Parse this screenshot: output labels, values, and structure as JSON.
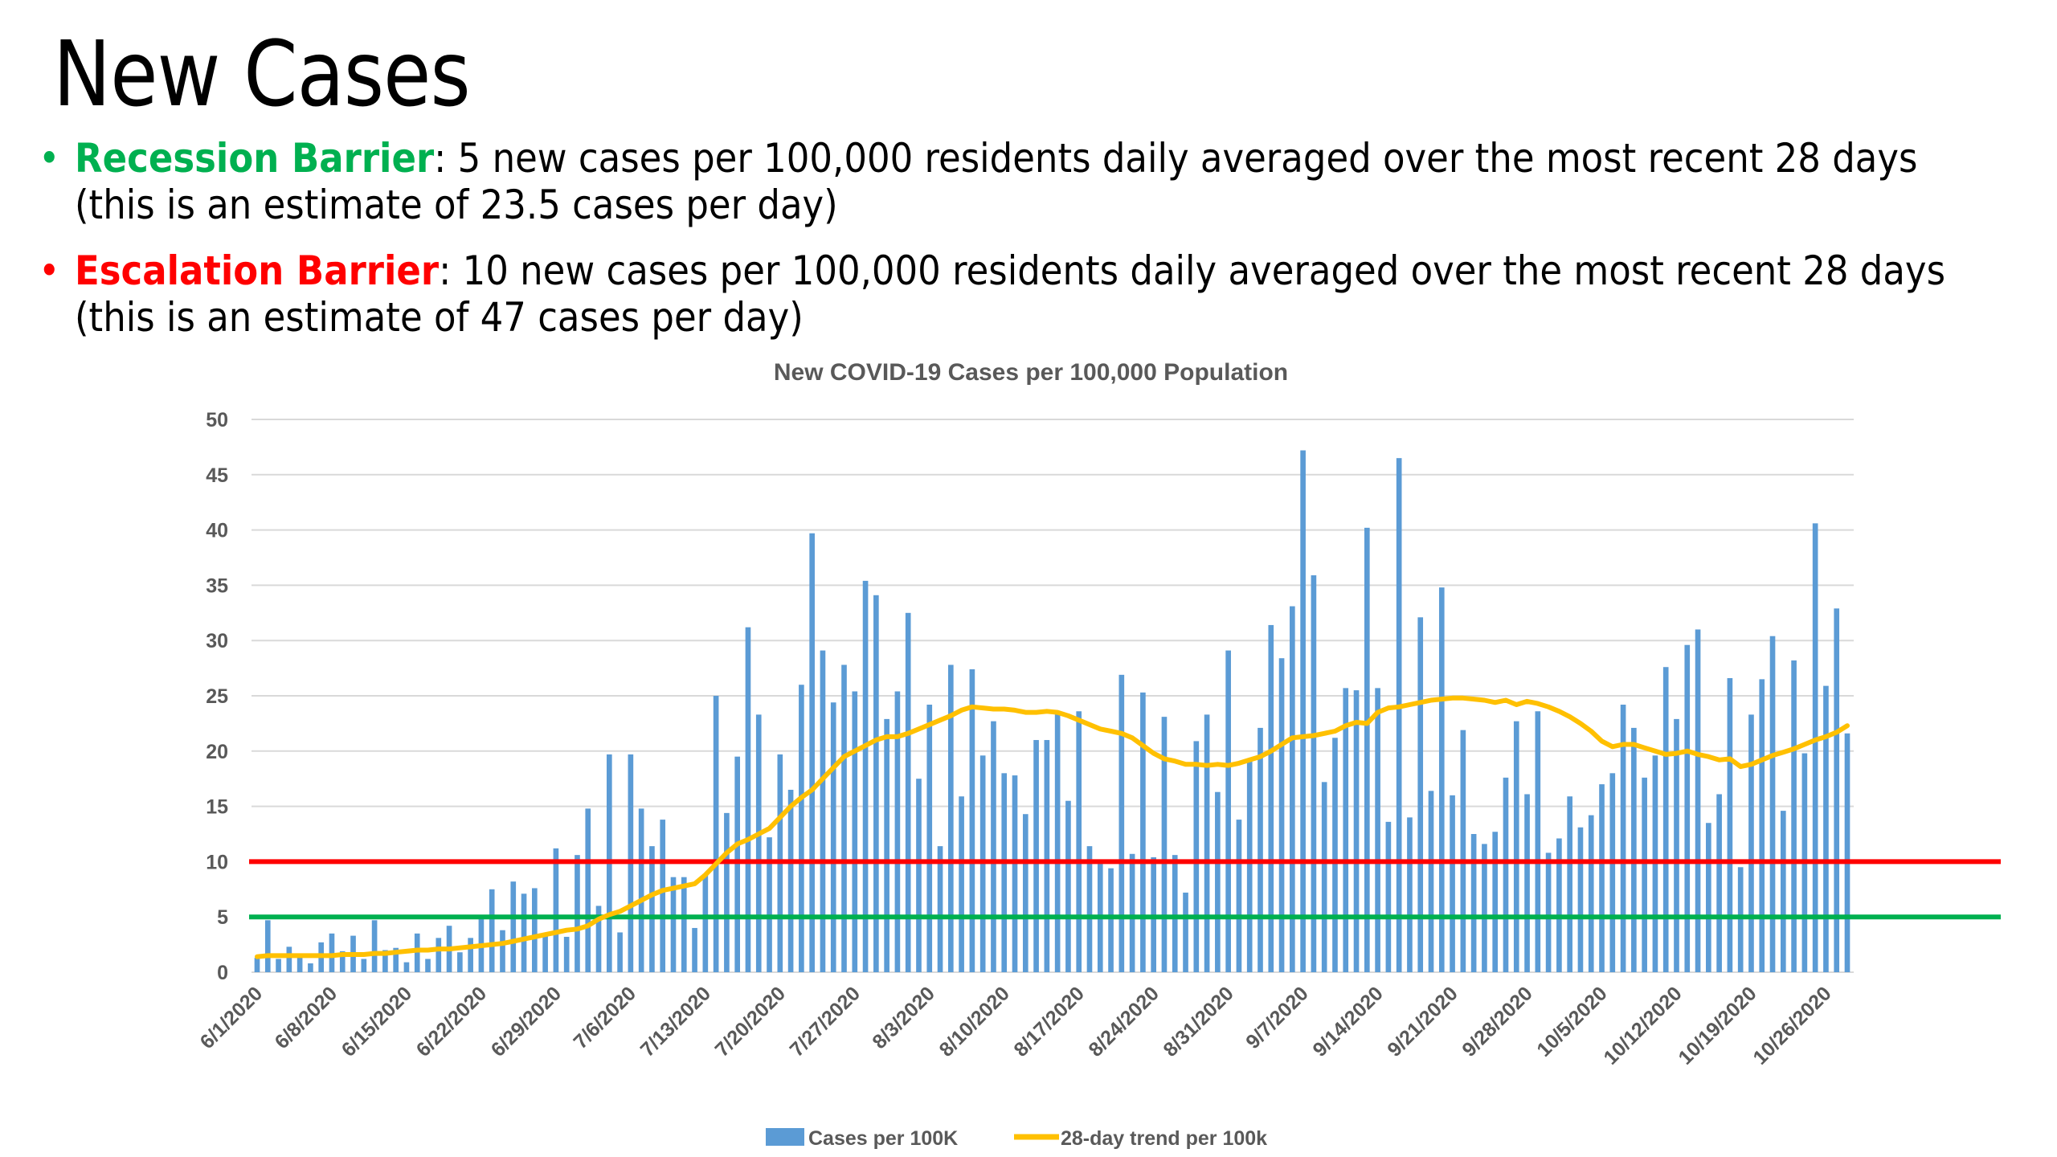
{
  "slide": {
    "title": "New Cases",
    "bullets": [
      {
        "term": "Recession Barrier",
        "term_color": "#00b050",
        "bullet_color": "#00b050",
        "line1": ": 5 new cases per 100,000 residents daily averaged over the most recent 28 days",
        "line2": "(this is an estimate of 23.5 cases per day)"
      },
      {
        "term": "Escalation Barrier",
        "term_color": "#ff0000",
        "bullet_color": "#ff0000",
        "line1": ": 10 new cases per 100,000 residents daily averaged over the most recent 28 days",
        "line2": "(this is an estimate of 47 cases per day)"
      }
    ],
    "bullet_glyph": "•"
  },
  "chart_data": {
    "type": "bar",
    "title": "New COVID-19 Cases per 100,000 Population",
    "xlabel": "",
    "ylabel": "",
    "ylim": [
      0,
      50
    ],
    "yticks": [
      0,
      5,
      10,
      15,
      20,
      25,
      30,
      35,
      40,
      45,
      50
    ],
    "grid": true,
    "start_date": "6/1/2020",
    "end_date": "10/28/2020",
    "xtick_labels": [
      "6/1/2020",
      "6/8/2020",
      "6/15/2020",
      "6/22/2020",
      "6/29/2020",
      "7/6/2020",
      "7/13/2020",
      "7/20/2020",
      "7/27/2020",
      "8/3/2020",
      "8/10/2020",
      "8/17/2020",
      "8/24/2020",
      "8/31/2020",
      "9/7/2020",
      "9/14/2020",
      "9/21/2020",
      "9/28/2020",
      "10/5/2020",
      "10/12/2020",
      "10/19/2020",
      "10/26/2020"
    ],
    "xtick_every_days": 7,
    "legend_position": "bottom",
    "series": [
      {
        "name": "Cases per 100K",
        "kind": "bar",
        "color": "#5b9bd5",
        "values": [
          1.3,
          4.7,
          1.2,
          2.3,
          1.4,
          0.8,
          2.7,
          3.5,
          1.9,
          3.3,
          1.2,
          4.7,
          2.0,
          2.2,
          0.9,
          3.5,
          1.2,
          3.1,
          4.2,
          1.8,
          3.1,
          5.1,
          7.5,
          3.8,
          8.2,
          7.1,
          7.6,
          3.4,
          11.2,
          3.2,
          10.6,
          14.8,
          6.0,
          19.7,
          3.6,
          19.7,
          14.8,
          11.4,
          13.8,
          8.6,
          8.6,
          4.0,
          8.9,
          25.0,
          14.4,
          19.5,
          31.2,
          23.3,
          12.2,
          19.7,
          16.5,
          26.0,
          39.7,
          29.1,
          24.4,
          27.8,
          25.4,
          35.4,
          34.1,
          22.9,
          25.4,
          32.5,
          17.5,
          24.2,
          11.4,
          27.8,
          15.9,
          27.4,
          19.6,
          22.7,
          18.0,
          17.8,
          14.3,
          21.0,
          21.0,
          23.5,
          15.5,
          23.6,
          11.4,
          9.8,
          9.4,
          26.9,
          10.7,
          25.3,
          10.4,
          23.1,
          10.6,
          7.2,
          20.9,
          23.3,
          16.3,
          29.1,
          13.8,
          19.3,
          22.1,
          31.4,
          28.4,
          33.1,
          47.2,
          35.9,
          17.2,
          21.2,
          25.7,
          25.5,
          40.2,
          25.7,
          13.6,
          46.5,
          14.0,
          32.1,
          16.4,
          34.8,
          16.0,
          21.9,
          12.5,
          11.6,
          12.7,
          17.6,
          22.7,
          16.1,
          23.6,
          10.8,
          12.1,
          15.9,
          13.1,
          14.2,
          17.0,
          18.0,
          24.2,
          22.1,
          17.6,
          19.6,
          27.6,
          22.9,
          29.6,
          31.0,
          13.5,
          16.1,
          26.6,
          9.5,
          23.3,
          26.5,
          30.4,
          14.6,
          28.2,
          19.8,
          40.6,
          25.9,
          32.9,
          21.6
        ]
      },
      {
        "name": "28-day trend per 100k",
        "kind": "line",
        "color": "#ffc000",
        "values": [
          1.4,
          1.5,
          1.5,
          1.5,
          1.5,
          1.5,
          1.5,
          1.5,
          1.6,
          1.6,
          1.6,
          1.7,
          1.7,
          1.8,
          1.9,
          2.0,
          2.0,
          2.1,
          2.1,
          2.2,
          2.3,
          2.4,
          2.5,
          2.6,
          2.8,
          3.0,
          3.2,
          3.4,
          3.6,
          3.8,
          3.9,
          4.2,
          4.8,
          5.2,
          5.5,
          6.0,
          6.5,
          7.0,
          7.4,
          7.6,
          7.8,
          8.0,
          8.8,
          9.8,
          10.8,
          11.6,
          12.0,
          12.5,
          13.0,
          14.0,
          15.0,
          15.8,
          16.5,
          17.5,
          18.5,
          19.5,
          20.0,
          20.5,
          21.0,
          21.3,
          21.3,
          21.6,
          22.0,
          22.4,
          22.8,
          23.2,
          23.7,
          24.0,
          23.9,
          23.8,
          23.8,
          23.7,
          23.5,
          23.5,
          23.6,
          23.5,
          23.2,
          22.8,
          22.4,
          22.0,
          21.8,
          21.6,
          21.2,
          20.5,
          19.8,
          19.3,
          19.1,
          18.8,
          18.8,
          18.7,
          18.8,
          18.7,
          18.9,
          19.2,
          19.5,
          20.0,
          20.6,
          21.2,
          21.3,
          21.4,
          21.6,
          21.8,
          22.3,
          22.6,
          22.5,
          23.5,
          23.9,
          24.0,
          24.2,
          24.4,
          24.6,
          24.7,
          24.8,
          24.8,
          24.7,
          24.6,
          24.4,
          24.6,
          24.2,
          24.5,
          24.3,
          24.0,
          23.6,
          23.1,
          22.5,
          21.8,
          20.9,
          20.4,
          20.6,
          20.6,
          20.3,
          20.0,
          19.7,
          19.8,
          20.0,
          19.7,
          19.5,
          19.2,
          19.3,
          18.6,
          18.8,
          19.2,
          19.6,
          19.9,
          20.2,
          20.6,
          21.0,
          21.3,
          21.7,
          22.3
        ]
      },
      {
        "name": "Escalation Barrier",
        "kind": "hline",
        "color": "#ff0000",
        "value": 10
      },
      {
        "name": "Recession Barrier",
        "kind": "hline",
        "color": "#00b050",
        "value": 5
      }
    ]
  }
}
